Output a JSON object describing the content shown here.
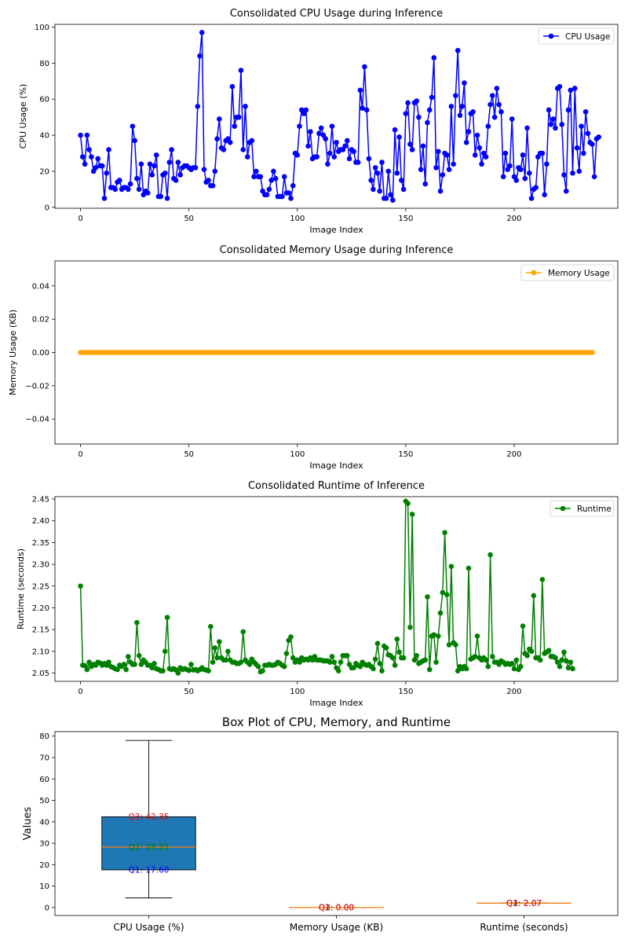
{
  "chart_data": [
    {
      "type": "line",
      "title": "Consolidated CPU Usage during Inference",
      "xlabel": "Image Index",
      "ylabel": "CPU Usage (%)",
      "xlim": [
        -11.8,
        247.8
      ],
      "ylim": [
        -0.5,
        101.5
      ],
      "xticks": [
        0,
        50,
        100,
        150,
        200
      ],
      "yticks": [
        0,
        20,
        40,
        60,
        80,
        100
      ],
      "legend_loc": "top-right",
      "series": [
        {
          "name": "CPU Usage",
          "color": "#0000ff",
          "marker": "circle",
          "values": [
            40,
            28,
            24,
            40,
            32,
            28,
            20,
            22,
            27,
            23,
            23,
            5,
            19,
            32,
            11,
            11,
            10,
            14,
            15,
            10,
            11,
            11,
            10,
            13,
            45,
            37,
            16,
            10,
            24,
            7,
            9,
            8,
            24,
            18,
            23,
            29,
            6,
            6,
            18,
            19,
            5,
            25,
            32,
            16,
            15,
            25,
            18,
            22,
            23,
            23,
            22,
            21,
            22,
            22,
            56,
            84,
            97,
            21,
            14,
            15,
            12,
            12,
            20,
            38,
            49,
            33,
            32,
            37,
            38,
            36,
            67,
            45,
            50,
            50,
            76,
            32,
            56,
            28,
            36,
            37,
            17,
            20,
            17,
            17,
            9,
            7,
            7,
            10,
            15,
            20,
            16,
            6,
            6,
            6,
            17,
            8,
            8,
            5,
            12,
            30,
            29,
            45,
            54,
            52,
            54,
            34,
            42,
            27,
            28,
            28,
            41,
            44,
            40,
            38,
            24,
            30,
            45,
            28,
            36,
            31,
            32,
            32,
            34,
            37,
            27,
            32,
            31,
            25,
            25,
            65,
            55,
            78,
            54,
            27,
            15,
            10,
            22,
            19,
            9,
            25,
            5,
            5,
            20,
            7,
            4,
            43,
            19,
            39,
            15,
            10,
            52,
            58,
            35,
            32,
            58,
            59,
            50,
            21,
            34,
            13,
            47,
            54,
            61,
            83,
            22,
            31,
            9,
            18,
            30,
            29,
            21,
            56,
            24,
            62,
            87,
            51,
            56,
            69,
            36,
            42,
            52,
            53,
            29,
            40,
            33,
            24,
            30,
            28,
            45,
            57,
            62,
            50,
            66,
            57,
            53,
            17,
            30,
            21,
            23,
            49,
            17,
            15,
            22,
            21,
            29,
            16,
            44,
            19,
            5,
            10,
            11,
            28,
            30,
            30,
            7,
            24,
            54,
            46,
            49,
            44,
            66,
            67,
            46,
            18,
            9,
            54,
            65,
            19,
            66,
            33,
            20,
            45,
            30,
            53,
            41,
            36,
            35,
            17,
            38,
            39
          ]
        }
      ]
    },
    {
      "type": "line",
      "title": "Consolidated Memory Usage during Inference",
      "xlabel": "Image Index",
      "ylabel": "Memory Usage (KB)",
      "xlim": [
        -11.8,
        247.8
      ],
      "ylim": [
        -0.055,
        0.055
      ],
      "xticks": [
        0,
        50,
        100,
        150,
        200
      ],
      "yticks": [
        -0.04,
        -0.02,
        0.0,
        0.02,
        0.04
      ],
      "ytick_labels": [
        "−0.04",
        "−0.02",
        "0.00",
        "0.02",
        "0.04"
      ],
      "legend_loc": "top-right",
      "series": [
        {
          "name": "Memory Usage",
          "color": "#ffa500",
          "marker": "circle",
          "count": 237,
          "constant": 0
        }
      ]
    },
    {
      "type": "line",
      "title": "Consolidated Runtime of Inference",
      "xlabel": "Image Index",
      "ylabel": "Runtime (seconds)",
      "xlim": [
        -11.8,
        247.8
      ],
      "ylim": [
        2.031,
        2.4555
      ],
      "xticks": [
        0,
        50,
        100,
        150,
        200
      ],
      "yticks": [
        2.05,
        2.1,
        2.15,
        2.2,
        2.25,
        2.3,
        2.35,
        2.4,
        2.45
      ],
      "ytick_labels": [
        "2.05",
        "2.10",
        "2.15",
        "2.20",
        "2.25",
        "2.30",
        "2.35",
        "2.40",
        "2.45"
      ],
      "legend_loc": "top-right",
      "series": [
        {
          "name": "Runtime",
          "color": "#008000",
          "marker": "circle",
          "values": [
            2.25,
            2.068,
            2.067,
            2.058,
            2.075,
            2.065,
            2.07,
            2.068,
            2.075,
            2.073,
            2.068,
            2.072,
            2.068,
            2.075,
            2.065,
            2.063,
            2.06,
            2.058,
            2.068,
            2.065,
            2.07,
            2.058,
            2.088,
            2.075,
            2.07,
            2.07,
            2.166,
            2.09,
            2.07,
            2.08,
            2.075,
            2.068,
            2.068,
            2.062,
            2.072,
            2.06,
            2.058,
            2.055,
            2.055,
            2.1,
            2.178,
            2.06,
            2.058,
            2.06,
            2.057,
            2.05,
            2.062,
            2.058,
            2.06,
            2.058,
            2.056,
            2.07,
            2.057,
            2.058,
            2.055,
            2.058,
            2.062,
            2.058,
            2.057,
            2.055,
            2.157,
            2.075,
            2.108,
            2.085,
            2.122,
            2.085,
            2.08,
            2.08,
            2.1,
            2.08,
            2.075,
            2.075,
            2.072,
            2.072,
            2.075,
            2.145,
            2.08,
            2.075,
            2.07,
            2.082,
            2.075,
            2.07,
            2.065,
            2.053,
            2.055,
            2.068,
            2.068,
            2.07,
            2.068,
            2.068,
            2.07,
            2.075,
            2.072,
            2.068,
            2.065,
            2.095,
            2.125,
            2.133,
            2.085,
            2.075,
            2.08,
            2.075,
            2.085,
            2.08,
            2.082,
            2.08,
            2.085,
            2.08,
            2.088,
            2.08,
            2.08,
            2.08,
            2.078,
            2.078,
            2.078,
            2.075,
            2.088,
            2.075,
            2.062,
            2.055,
            2.075,
            2.09,
            2.09,
            2.09,
            2.07,
            2.062,
            2.062,
            2.072,
            2.068,
            2.065,
            2.075,
            2.07,
            2.068,
            2.07,
            2.065,
            2.06,
            2.082,
            2.118,
            2.072,
            2.055,
            2.112,
            2.108,
            2.092,
            2.09,
            2.085,
            2.068,
            2.128,
            2.098,
            2.085,
            2.085,
            2.445,
            2.44,
            2.155,
            2.415,
            2.08,
            2.09,
            2.072,
            2.075,
            2.078,
            2.08,
            2.225,
            2.058,
            2.135,
            2.138,
            2.075,
            2.135,
            2.188,
            2.235,
            2.373,
            2.23,
            2.115,
            2.295,
            2.12,
            2.115,
            2.055,
            2.065,
            2.06,
            2.065,
            2.06,
            2.291,
            2.082,
            2.085,
            2.088,
            2.135,
            2.085,
            2.08,
            2.085,
            2.08,
            2.065,
            2.322,
            2.088,
            2.075,
            2.075,
            2.07,
            2.078,
            2.075,
            2.07,
            2.072,
            2.07,
            2.072,
            2.06,
            2.08,
            2.058,
            2.065,
            2.158,
            2.095,
            2.09,
            2.105,
            2.1,
            2.228,
            2.085,
            2.085,
            2.08,
            2.265,
            2.095,
            2.098,
            2.102,
            2.088,
            2.088,
            2.085,
            2.075,
            2.065,
            2.08,
            2.098,
            2.078,
            2.062,
            2.075,
            2.06
          ]
        }
      ]
    },
    {
      "type": "box",
      "title": "Box Plot of CPU, Memory, and Runtime",
      "ylabel": "Values",
      "ylim": [
        -3.7,
        82.1
      ],
      "yticks": [
        0,
        10,
        20,
        30,
        40,
        50,
        60,
        70,
        80
      ],
      "categories": [
        "CPU Usage (%)",
        "Memory Usage (KB)",
        "Runtime (seconds)"
      ],
      "box_color": "#1f77b4",
      "median_color": "#ff7f0e",
      "boxes": [
        {
          "whisker_low": 4.5,
          "q1": 17.6,
          "median": 28.25,
          "q3": 42.35,
          "whisker_high": 78
        },
        {
          "whisker_low": 0,
          "q1": 0,
          "median": 0,
          "q3": 0,
          "whisker_high": 0
        },
        {
          "whisker_low": 2.07,
          "q1": 2.07,
          "median": 2.07,
          "q3": 2.07,
          "whisker_high": 2.07
        }
      ],
      "annotations": [
        {
          "box": 0,
          "text": "Q3: 42.35",
          "y": 42.35,
          "color": "#ff0000"
        },
        {
          "box": 0,
          "text": "Q2: 28.25",
          "y": 28.25,
          "color": "#008000"
        },
        {
          "box": 0,
          "text": "Q1: 17.60",
          "y": 17.6,
          "color": "#0000ff"
        },
        {
          "box": 1,
          "text": "Q1: 0.00",
          "y": 0,
          "color": "#0000ff"
        },
        {
          "box": 1,
          "text": "Q2: 0.00",
          "y": 0,
          "color": "#008000"
        },
        {
          "box": 1,
          "text": "Q3: 0.00",
          "y": 0,
          "color": "#ff0000"
        },
        {
          "box": 2,
          "text": "Q1: 2.07",
          "y": 2.07,
          "color": "#0000ff"
        },
        {
          "box": 2,
          "text": "Q2: 2.07",
          "y": 2.07,
          "color": "#008000"
        },
        {
          "box": 2,
          "text": "Q3: 2.07",
          "y": 2.07,
          "color": "#ff0000"
        }
      ]
    }
  ]
}
